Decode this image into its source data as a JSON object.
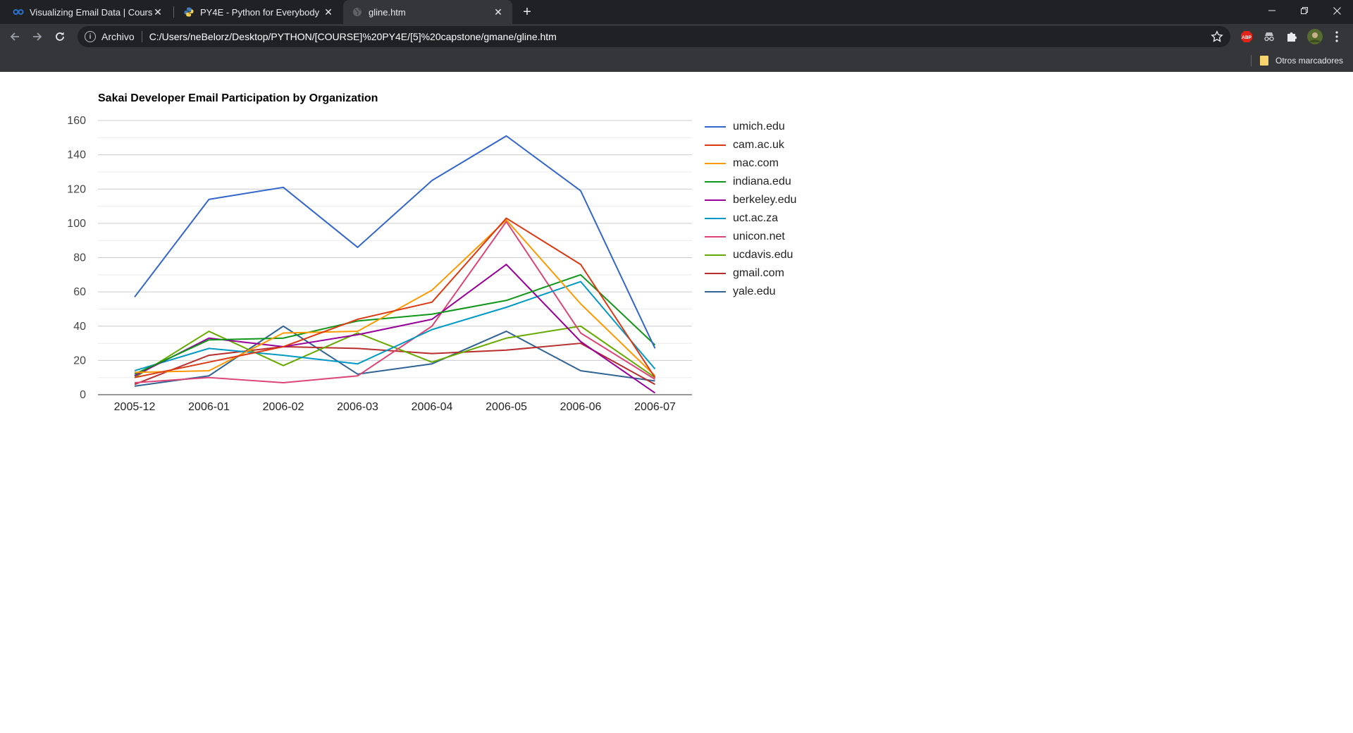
{
  "browser": {
    "tabs": [
      {
        "title": "Visualizing Email Data | Coursera",
        "icon": "coursera-icon",
        "active": false
      },
      {
        "title": "PY4E - Python for Everybody",
        "icon": "python-icon",
        "active": false
      },
      {
        "title": "gline.htm",
        "icon": "globe-icon",
        "active": true
      }
    ],
    "address": {
      "scheme_label": "Archivo",
      "url": "C:/Users/neBelorz/Desktop/PYTHON/[COURSE]%20PY4E/[5]%20capstone/gmane/gline.htm"
    },
    "extensions": [
      {
        "name": "adblock-plus-icon",
        "label": "ABP",
        "color": "#e2231a"
      },
      {
        "name": "incognito-extension-icon"
      },
      {
        "name": "extensions-puzzle-icon"
      },
      {
        "name": "profile-avatar-icon"
      }
    ],
    "bookmarks": {
      "other_label": "Otros marcadores"
    },
    "colors": {
      "tabstrip": "#202124",
      "toolbar": "#35363a",
      "omnibox": "#202124",
      "text": "#e8eaed"
    }
  },
  "chart_data": {
    "type": "line",
    "title": "Sakai Developer Email Participation by Organization",
    "xlabel": "",
    "ylabel": "",
    "categories": [
      "2005-12",
      "2006-01",
      "2006-02",
      "2006-03",
      "2006-04",
      "2006-05",
      "2006-06",
      "2006-07"
    ],
    "yticks": [
      0,
      20,
      40,
      60,
      80,
      100,
      120,
      140,
      160
    ],
    "ylim": [
      0,
      160
    ],
    "grid": true,
    "legend_position": "right",
    "series": [
      {
        "name": "umich.edu",
        "color": "#3366cc",
        "values": [
          57,
          114,
          121,
          86,
          125,
          151,
          119,
          27
        ]
      },
      {
        "name": "cam.ac.uk",
        "color": "#dc3912",
        "values": [
          10,
          19,
          28,
          44,
          54,
          103,
          76,
          10
        ]
      },
      {
        "name": "mac.com",
        "color": "#ff9900",
        "values": [
          13,
          14,
          36,
          37,
          61,
          102,
          53,
          11
        ]
      },
      {
        "name": "indiana.edu",
        "color": "#109618",
        "values": [
          12,
          32,
          33,
          43,
          47,
          55,
          70,
          29
        ]
      },
      {
        "name": "berkeley.edu",
        "color": "#990099",
        "values": [
          11,
          33,
          28,
          35,
          44,
          76,
          31,
          1
        ]
      },
      {
        "name": "uct.ac.za",
        "color": "#0099c6",
        "values": [
          14,
          27,
          23,
          18,
          38,
          51,
          66,
          15
        ]
      },
      {
        "name": "unicon.net",
        "color": "#dd4477",
        "values": [
          7,
          10,
          7,
          11,
          40,
          101,
          36,
          9
        ]
      },
      {
        "name": "ucdavis.edu",
        "color": "#66aa00",
        "values": [
          10,
          37,
          17,
          36,
          19,
          33,
          40,
          10
        ]
      },
      {
        "name": "gmail.com",
        "color": "#b82e2e",
        "values": [
          6,
          23,
          28,
          27,
          24,
          26,
          30,
          6
        ]
      },
      {
        "name": "yale.edu",
        "color": "#316395",
        "values": [
          5,
          11,
          40,
          12,
          18,
          37,
          14,
          8
        ]
      }
    ]
  }
}
